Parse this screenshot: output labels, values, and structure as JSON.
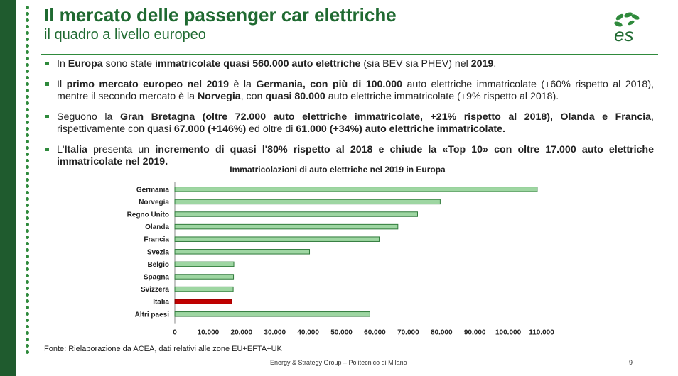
{
  "header": {
    "title": "Il mercato delle passenger car elettriche",
    "subtitle": "il quadro a livello europeo",
    "logo_text": "es"
  },
  "bullets": [
    [
      {
        "t": "In ",
        "b": false
      },
      {
        "t": "Europa",
        "b": true
      },
      {
        "t": " sono state ",
        "b": false
      },
      {
        "t": "immatricolate quasi 560.000 auto elettriche",
        "b": true
      },
      {
        "t": " (sia BEV sia PHEV) nel ",
        "b": false
      },
      {
        "t": "2019",
        "b": true
      },
      {
        "t": ".",
        "b": false
      }
    ],
    [
      {
        "t": "Il ",
        "b": false
      },
      {
        "t": "primo mercato europeo nel 2019",
        "b": true
      },
      {
        "t": " è la ",
        "b": false
      },
      {
        "t": "Germania, con più di 100.000",
        "b": true
      },
      {
        "t": " auto elettriche immatricolate (+60% rispetto al 2018), mentre il secondo mercato è la ",
        "b": false
      },
      {
        "t": "Norvegia",
        "b": true
      },
      {
        "t": ", con ",
        "b": false
      },
      {
        "t": "quasi 80.000",
        "b": true
      },
      {
        "t": " auto elettriche immatricolate (+9% rispetto al 2018).",
        "b": false
      }
    ],
    [
      {
        "t": "Seguono la ",
        "b": false
      },
      {
        "t": "Gran Bretagna (oltre 72.000 auto elettriche immatricolate, +21% rispetto al 2018), Olanda e Francia",
        "b": true
      },
      {
        "t": ", rispettivamente con quasi ",
        "b": false
      },
      {
        "t": "67.000 (+146%)",
        "b": true
      },
      {
        "t": " ed oltre di ",
        "b": false
      },
      {
        "t": "61.000 (+34%) auto elettriche immatricolate.",
        "b": true
      }
    ],
    [
      {
        "t": "L'",
        "b": false
      },
      {
        "t": "Italia",
        "b": true
      },
      {
        "t": " presenta un ",
        "b": false
      },
      {
        "t": "incremento di quasi l'80% rispetto al 2018 e chiude la «Top 10» con oltre 17.000 auto elettriche immatricolate nel 2019.",
        "b": true
      }
    ]
  ],
  "chart_data": {
    "type": "bar",
    "orientation": "horizontal",
    "title": "Immatricolazioni di auto elettriche nel 2019 in Europa",
    "categories": [
      "Germania",
      "Norvegia",
      "Regno Unito",
      "Olanda",
      "Francia",
      "Svezia",
      "Belgio",
      "Spagna",
      "Svizzera",
      "Italia",
      "Altri paesi"
    ],
    "values": [
      108700,
      79600,
      72800,
      66900,
      61300,
      40400,
      17700,
      17600,
      17500,
      17100,
      58500
    ],
    "highlight": "Italia",
    "bar_color": "#9ed6a2",
    "bar_border": "#2f7a3a",
    "highlight_color": "#c00000",
    "xlim": [
      0,
      110000
    ],
    "xticks": [
      "0",
      "10.000",
      "20.000",
      "30.000",
      "40.000",
      "50.000",
      "60.000",
      "70.000",
      "80.000",
      "90.000",
      "100.000",
      "110.000"
    ],
    "grid": false,
    "xlabel": "",
    "ylabel": ""
  },
  "footer": {
    "source": "Fonte: Rielaborazione da ACEA, dati relativi alle zone EU+EFTA+UK",
    "org": "Energy & Strategy Group – Politecnico di Milano",
    "page": "9"
  }
}
